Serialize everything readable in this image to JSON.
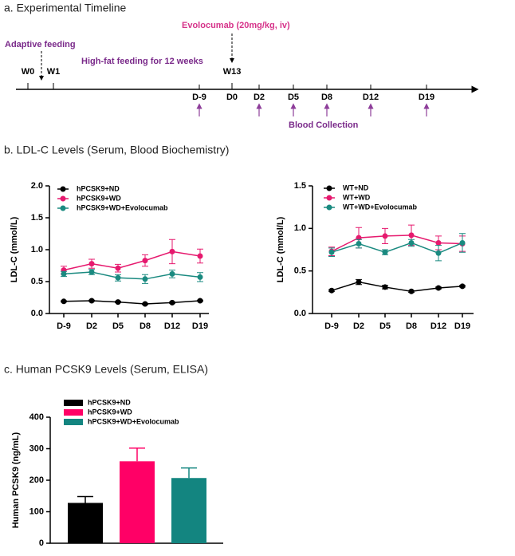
{
  "headings": [
    "a. Experimental Timeline",
    "b. LDL-C Levels (Serum, Blood Biochemistry)",
    "c. Human PCSK9 Levels (Serum, ELISA)"
  ],
  "timeline": {
    "treatment": "Evolocumab (20mg/kg, iv)",
    "adaptive": "Adaptive feeding",
    "hfd": "High-fat feeding for 12 weeks",
    "weeks": [
      "W0",
      "W1",
      "W13"
    ],
    "days": [
      "D-9",
      "D0",
      "D2",
      "D5",
      "D8",
      "D12",
      "D19"
    ],
    "collection": "Blood Collection"
  },
  "chart_data": [
    {
      "type": "line",
      "y_label": "LDL-C (mmol/L)",
      "categories": [
        "D-9",
        "D2",
        "D5",
        "D8",
        "D12",
        "D19"
      ],
      "ylim": [
        0,
        2
      ],
      "yticks": [
        {
          "value": 0,
          "label": "0.0"
        },
        {
          "value": 0.5,
          "label": "0.5"
        },
        {
          "value": 1,
          "label": "1.0"
        },
        {
          "value": 1.5,
          "label": "1.5"
        },
        {
          "value": 2,
          "label": "2.0"
        }
      ],
      "series": [
        {
          "name": "hPCSK9+ND",
          "color": "#000000",
          "values": [
            0.19,
            0.2,
            0.18,
            0.15,
            0.17,
            0.2
          ],
          "errors": [
            0.01,
            0.01,
            0.01,
            0.01,
            0.01,
            0.01
          ]
        },
        {
          "name": "hPCSK9+WD",
          "color": "#e6196e",
          "values": [
            0.68,
            0.78,
            0.71,
            0.83,
            0.97,
            0.9
          ],
          "errors": [
            0.06,
            0.07,
            0.06,
            0.09,
            0.19,
            0.11
          ]
        },
        {
          "name": "hPCSK9+WD+Evolocumab",
          "color": "#1a8a80",
          "values": [
            0.62,
            0.65,
            0.56,
            0.54,
            0.62,
            0.57
          ],
          "errors": [
            0.04,
            0.04,
            0.05,
            0.07,
            0.06,
            0.07
          ]
        }
      ]
    },
    {
      "type": "line",
      "y_label": "LDL-C (mmol/L)",
      "categories": [
        "D-9",
        "D2",
        "D5",
        "D8",
        "D12",
        "D19"
      ],
      "ylim": [
        0,
        1.5
      ],
      "yticks": [
        {
          "value": 0,
          "label": "0.0"
        },
        {
          "value": 0.5,
          "label": "0.5"
        },
        {
          "value": 1,
          "label": "1.0"
        },
        {
          "value": 1.5,
          "label": "1.5"
        }
      ],
      "series": [
        {
          "name": "WT+ND",
          "color": "#000000",
          "values": [
            0.27,
            0.37,
            0.31,
            0.26,
            0.3,
            0.32
          ],
          "errors": [
            0.01,
            0.03,
            0.02,
            0.01,
            0.01,
            0.01
          ]
        },
        {
          "name": "WT+WD",
          "color": "#e6196e",
          "values": [
            0.73,
            0.89,
            0.91,
            0.92,
            0.83,
            0.82
          ],
          "errors": [
            0.05,
            0.12,
            0.09,
            0.12,
            0.08,
            0.09
          ]
        },
        {
          "name": "WT+WD+Evolocumab",
          "color": "#1a8a80",
          "values": [
            0.72,
            0.82,
            0.72,
            0.83,
            0.71,
            0.83
          ],
          "errors": [
            0.05,
            0.05,
            0.03,
            0.04,
            0.09,
            0.11
          ]
        }
      ]
    },
    {
      "type": "bar",
      "y_label": "Human PCSK9 (ng/mL)",
      "categories": [
        null
      ],
      "ylim": [
        0,
        400
      ],
      "yticks": [
        0,
        100,
        200,
        300,
        400
      ],
      "series": [
        {
          "name": "hPCSK9+ND",
          "color": "#000000",
          "values": [
            128
          ],
          "errors": [
            20
          ]
        },
        {
          "name": "hPCSK9+WD",
          "color": "#ff0066",
          "values": [
            260
          ],
          "errors": [
            42
          ]
        },
        {
          "name": "hPCSK9+WD+Evolocumab",
          "color": "#138580",
          "values": [
            207
          ],
          "errors": [
            32
          ]
        }
      ]
    }
  ]
}
